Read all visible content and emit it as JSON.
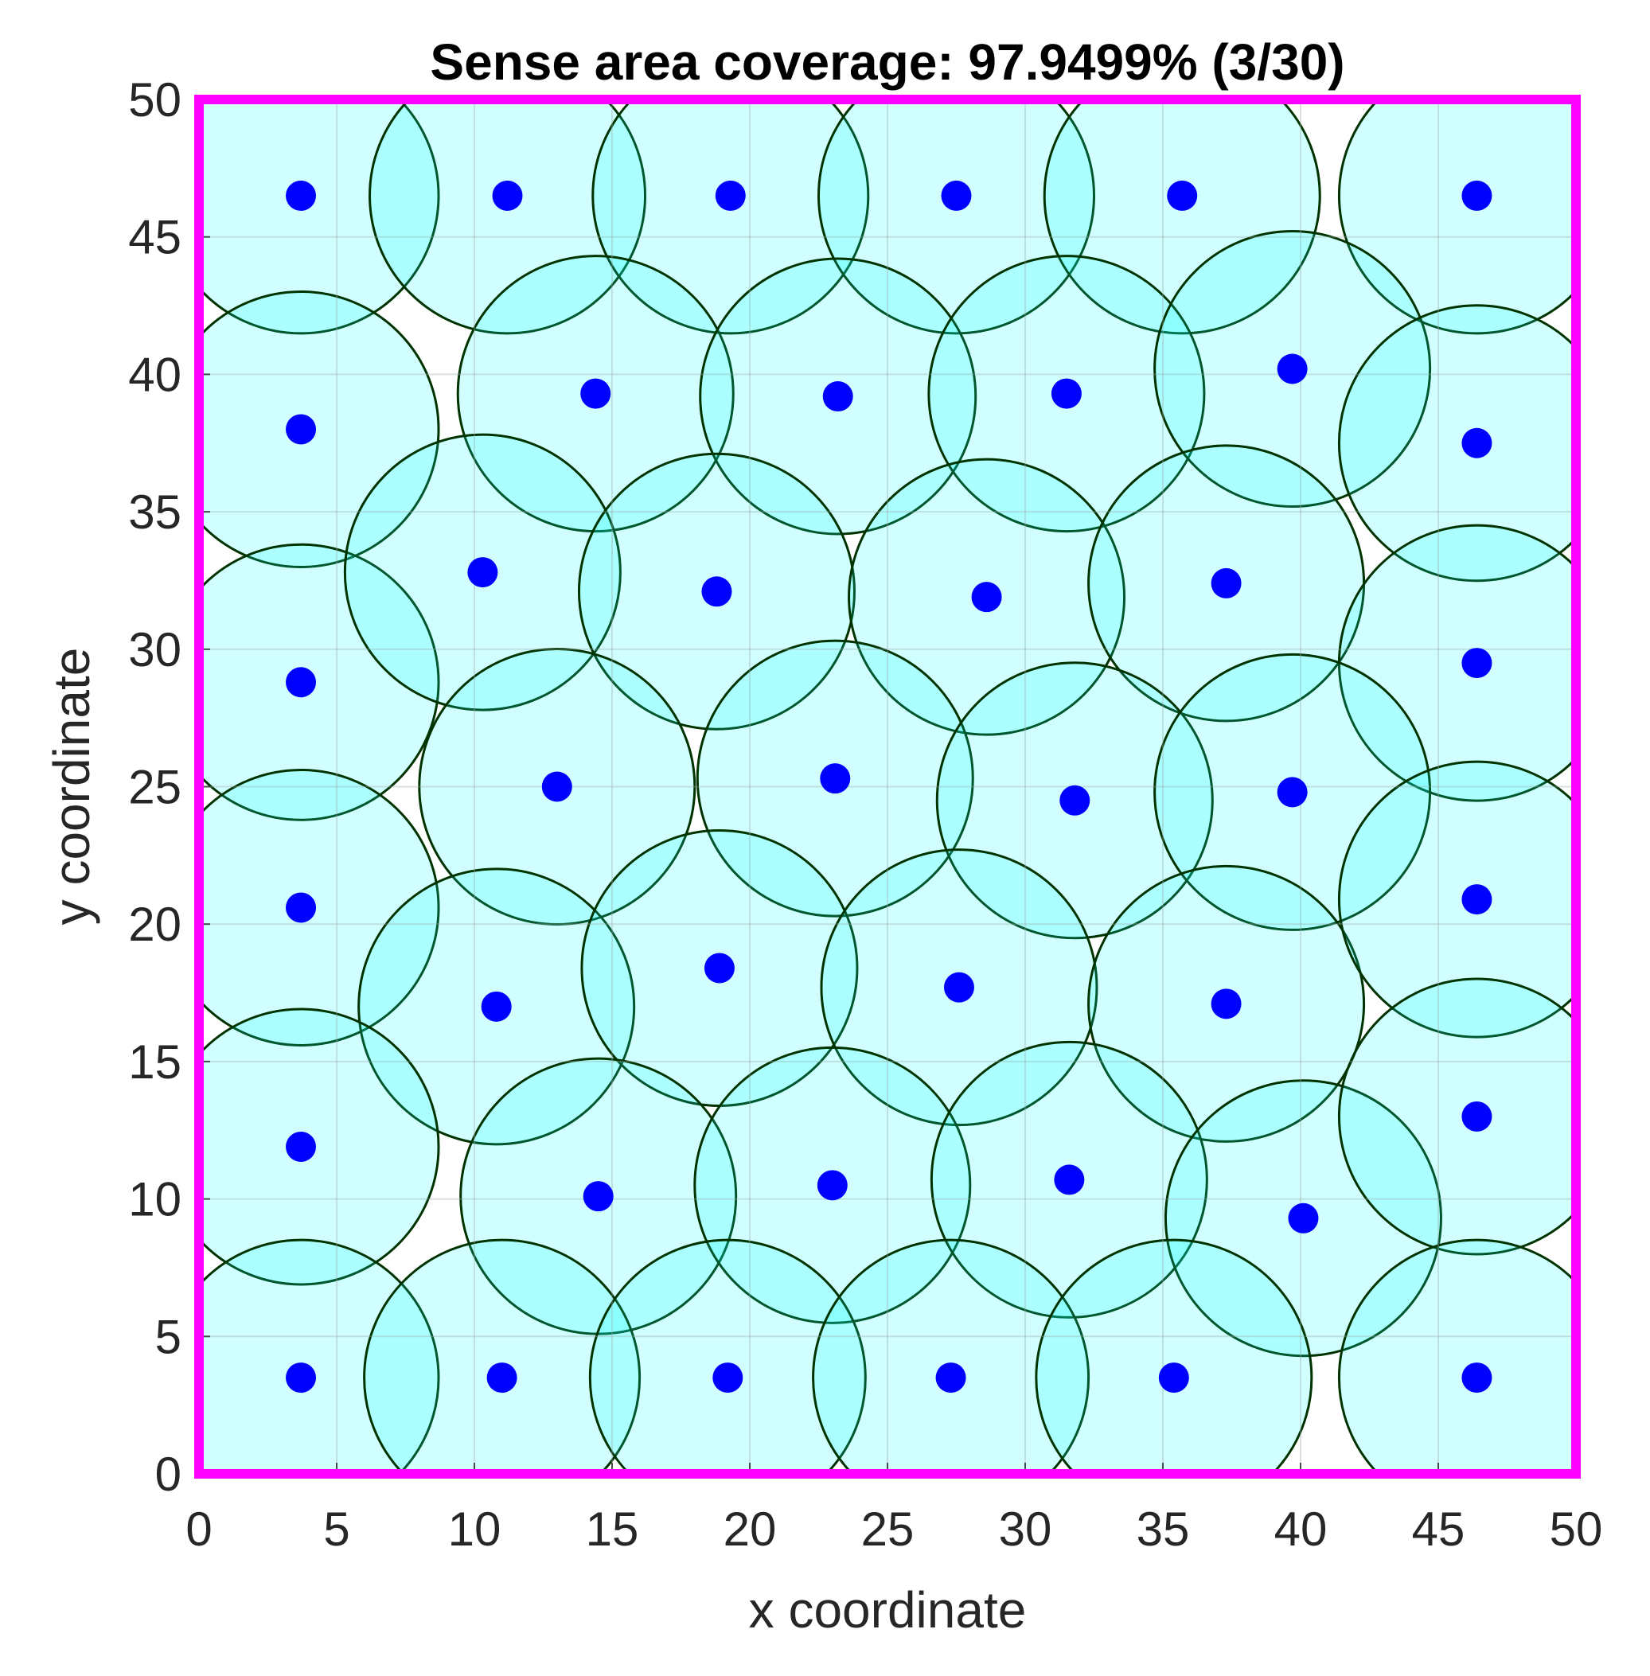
{
  "chart_data": {
    "type": "scatter",
    "title": "Sense area coverage: 97.9499% (3/30)",
    "xlabel": "x coordinate",
    "ylabel": "y coordinate",
    "xlim": [
      0,
      50
    ],
    "ylim": [
      0,
      50
    ],
    "xticks": [
      "0",
      "5",
      "10",
      "15",
      "20",
      "25",
      "30",
      "35",
      "40",
      "45",
      "50"
    ],
    "yticks": [
      "0",
      "5",
      "10",
      "15",
      "20",
      "25",
      "30",
      "35",
      "40",
      "45",
      "50"
    ],
    "grid": true,
    "sensing_radius": 5,
    "colors": {
      "circle_fill": "#00ffff",
      "circle_edge": "#003300",
      "node": "#0000ff",
      "boundary": "#ff00ff"
    },
    "nodes": [
      {
        "x": 3.7,
        "y": 46.5
      },
      {
        "x": 11.2,
        "y": 46.5
      },
      {
        "x": 19.3,
        "y": 46.5
      },
      {
        "x": 27.5,
        "y": 46.5
      },
      {
        "x": 35.7,
        "y": 46.5
      },
      {
        "x": 46.4,
        "y": 46.5
      },
      {
        "x": 3.7,
        "y": 38.0
      },
      {
        "x": 14.4,
        "y": 39.3
      },
      {
        "x": 23.2,
        "y": 39.2
      },
      {
        "x": 31.5,
        "y": 39.3
      },
      {
        "x": 39.7,
        "y": 40.2
      },
      {
        "x": 46.4,
        "y": 37.5
      },
      {
        "x": 3.7,
        "y": 28.8
      },
      {
        "x": 10.3,
        "y": 32.8
      },
      {
        "x": 18.8,
        "y": 32.1
      },
      {
        "x": 28.6,
        "y": 31.9
      },
      {
        "x": 37.3,
        "y": 32.4
      },
      {
        "x": 46.4,
        "y": 29.5
      },
      {
        "x": 13.0,
        "y": 25.0
      },
      {
        "x": 23.1,
        "y": 25.3
      },
      {
        "x": 31.8,
        "y": 24.5
      },
      {
        "x": 39.7,
        "y": 24.8
      },
      {
        "x": 3.7,
        "y": 20.6
      },
      {
        "x": 10.8,
        "y": 17.0
      },
      {
        "x": 18.9,
        "y": 18.4
      },
      {
        "x": 27.6,
        "y": 17.7
      },
      {
        "x": 37.3,
        "y": 17.1
      },
      {
        "x": 46.4,
        "y": 20.9
      },
      {
        "x": 3.7,
        "y": 11.9
      },
      {
        "x": 14.5,
        "y": 10.1
      },
      {
        "x": 23.0,
        "y": 10.5
      },
      {
        "x": 31.6,
        "y": 10.7
      },
      {
        "x": 40.1,
        "y": 9.3
      },
      {
        "x": 46.4,
        "y": 13.0
      },
      {
        "x": 3.7,
        "y": 3.5
      },
      {
        "x": 11.0,
        "y": 3.5
      },
      {
        "x": 19.2,
        "y": 3.5
      },
      {
        "x": 27.3,
        "y": 3.5
      },
      {
        "x": 35.4,
        "y": 3.5
      },
      {
        "x": 46.4,
        "y": 3.5
      }
    ]
  }
}
